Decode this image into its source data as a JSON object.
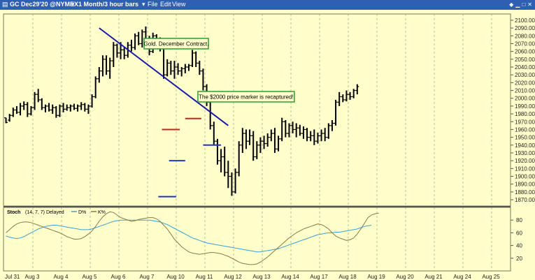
{
  "titlebar": {
    "symbol": "GC Dec29'20 @NYMEX",
    "interval": "1 Month/3 hour bars",
    "menu_file": "File",
    "menu_edit": "Edit",
    "menu_view": "View",
    "icons": [
      "pin-icon",
      "minimize-icon",
      "maximize-icon",
      "close-icon"
    ],
    "bg_color": "#2f5fb3"
  },
  "chart_data": [
    {
      "type": "ohlc",
      "title": "",
      "colors": {
        "background": "#ffffcc",
        "bars": "#000000",
        "trendline": "#1a1aa8",
        "resistance": "#cc2222",
        "support": "#2233cc",
        "grid": "#bdbd9a"
      },
      "ylim": [
        1862,
        2108
      ],
      "y_ticks": [
        1870,
        1880,
        1890,
        1900,
        1910,
        1920,
        1930,
        1940,
        1950,
        1960,
        1970,
        1980,
        1990,
        2000,
        2010,
        2020,
        2030,
        2040,
        2050,
        2060,
        2070,
        2080,
        2090,
        2100
      ],
      "x_labels": [
        "Jul 31",
        "Aug 3",
        "Aug 4",
        "Aug 5",
        "Aug 6",
        "Aug 7",
        "Aug 10",
        "Aug 11",
        "Aug 12",
        "Aug 13",
        "Aug 14",
        "Aug 17",
        "Aug 18",
        "Aug 19",
        "Aug 20",
        "Aug 21",
        "Aug 24",
        "Aug 25"
      ],
      "bars_per_day": 8,
      "bars": [
        [
          1975,
          1975,
          1968,
          1969
        ],
        [
          1972,
          1980,
          1970,
          1978
        ],
        [
          1978,
          1988,
          1976,
          1985
        ],
        [
          1985,
          1990,
          1980,
          1982
        ],
        [
          1982,
          1994,
          1978,
          1990
        ],
        [
          1990,
          1996,
          1985,
          1992
        ],
        [
          1992,
          1995,
          1976,
          1980
        ],
        [
          1980,
          1990,
          1978,
          1988
        ],
        [
          1988,
          2008,
          1985,
          2005
        ],
        [
          2005,
          2012,
          1995,
          1998
        ],
        [
          1998,
          2000,
          1985,
          1988
        ],
        [
          1988,
          1992,
          1982,
          1990
        ],
        [
          1990,
          1994,
          1983,
          1985
        ],
        [
          1985,
          1992,
          1980,
          1988
        ],
        [
          1988,
          1990,
          1975,
          1978
        ],
        [
          1978,
          1992,
          1976,
          1990
        ],
        [
          1990,
          1994,
          1982,
          1986
        ],
        [
          1986,
          1992,
          1984,
          1988
        ],
        [
          1988,
          1992,
          1983,
          1990
        ],
        [
          1990,
          1993,
          1985,
          1987
        ],
        [
          1987,
          1992,
          1983,
          1990
        ],
        [
          1990,
          1995,
          1985,
          1992
        ],
        [
          1992,
          1994,
          1983,
          1986
        ],
        [
          1986,
          1992,
          1980,
          1990
        ],
        [
          1990,
          2005,
          1988,
          2002
        ],
        [
          2002,
          2028,
          2000,
          2025
        ],
        [
          2025,
          2040,
          2020,
          2035
        ],
        [
          2035,
          2055,
          2028,
          2050
        ],
        [
          2050,
          2055,
          2030,
          2035
        ],
        [
          2035,
          2052,
          2025,
          2048
        ],
        [
          2048,
          2072,
          2040,
          2068
        ],
        [
          2068,
          2070,
          2052,
          2058
        ],
        [
          2058,
          2072,
          2050,
          2062
        ],
        [
          2062,
          2065,
          2050,
          2055
        ],
        [
          2055,
          2072,
          2052,
          2068
        ],
        [
          2068,
          2075,
          2060,
          2065
        ],
        [
          2065,
          2083,
          2062,
          2080
        ],
        [
          2080,
          2085,
          2068,
          2070
        ],
        [
          2070,
          2088,
          2065,
          2085
        ],
        [
          2085,
          2092,
          2072,
          2075
        ],
        [
          2075,
          2080,
          2055,
          2060
        ],
        [
          2060,
          2084,
          2058,
          2080
        ],
        [
          2080,
          2082,
          2065,
          2070
        ],
        [
          2070,
          2078,
          2060,
          2075
        ],
        [
          2075,
          2076,
          2025,
          2030
        ],
        [
          2030,
          2050,
          2028,
          2045
        ],
        [
          2045,
          2048,
          2030,
          2035
        ],
        [
          2035,
          2048,
          2025,
          2040
        ],
        [
          2040,
          2045,
          2030,
          2035
        ],
        [
          2035,
          2040,
          2028,
          2038
        ],
        [
          2038,
          2044,
          2032,
          2040
        ],
        [
          2040,
          2044,
          2035,
          2042
        ],
        [
          2042,
          2062,
          2040,
          2058
        ],
        [
          2058,
          2060,
          2040,
          2045
        ],
        [
          2045,
          2048,
          2030,
          2035
        ],
        [
          2035,
          2038,
          2010,
          2015
        ],
        [
          2015,
          2018,
          1990,
          1995
        ],
        [
          1995,
          1998,
          1960,
          1965
        ],
        [
          1965,
          1970,
          1940,
          1945
        ],
        [
          1945,
          1948,
          1915,
          1920
        ],
        [
          1920,
          1935,
          1905,
          1925
        ],
        [
          1925,
          1938,
          1900,
          1905
        ],
        [
          1905,
          1920,
          1885,
          1900
        ],
        [
          1900,
          1905,
          1875,
          1880
        ],
        [
          1880,
          1910,
          1878,
          1905
        ],
        [
          1905,
          1945,
          1900,
          1940
        ],
        [
          1940,
          1962,
          1930,
          1955
        ],
        [
          1955,
          1960,
          1935,
          1945
        ],
        [
          1945,
          1960,
          1940,
          1952
        ],
        [
          1952,
          1958,
          1920,
          1925
        ],
        [
          1925,
          1945,
          1922,
          1940
        ],
        [
          1940,
          1950,
          1930,
          1945
        ],
        [
          1945,
          1952,
          1935,
          1942
        ],
        [
          1942,
          1955,
          1938,
          1950
        ],
        [
          1950,
          1960,
          1945,
          1955
        ],
        [
          1955,
          1962,
          1930,
          1935
        ],
        [
          1935,
          1952,
          1932,
          1948
        ],
        [
          1948,
          1975,
          1945,
          1970
        ],
        [
          1970,
          1972,
          1950,
          1955
        ],
        [
          1955,
          1968,
          1950,
          1965
        ],
        [
          1965,
          1970,
          1955,
          1960
        ],
        [
          1960,
          1968,
          1950,
          1962
        ],
        [
          1962,
          1966,
          1952,
          1955
        ],
        [
          1955,
          1964,
          1948,
          1960
        ],
        [
          1960,
          1962,
          1945,
          1950
        ],
        [
          1950,
          1958,
          1945,
          1952
        ],
        [
          1952,
          1960,
          1940,
          1945
        ],
        [
          1945,
          1956,
          1942,
          1952
        ],
        [
          1952,
          1960,
          1945,
          1955
        ],
        [
          1955,
          1962,
          1945,
          1950
        ],
        [
          1950,
          1968,
          1948,
          1965
        ],
        [
          1965,
          1972,
          1958,
          1968
        ],
        [
          1968,
          1998,
          1965,
          1995
        ],
        [
          1995,
          2008,
          1990,
          2002
        ],
        [
          2002,
          2005,
          1995,
          1998
        ],
        [
          1998,
          2010,
          1996,
          2005
        ],
        [
          2005,
          2008,
          1998,
          2002
        ],
        [
          2002,
          2012,
          2000,
          2010
        ],
        [
          2010,
          2018,
          2005,
          2015
        ]
      ],
      "annotations": [
        {
          "text": "Gold. December Contract.",
          "date_index": 47.5,
          "price": 2070,
          "border_color": "#2e9e2e"
        },
        {
          "text": "The $2000 price marker is recaptured!",
          "date_index": 67,
          "price": 2002,
          "border_color": "#2e9e2e"
        }
      ],
      "trendline": {
        "from": [
          26,
          2090
        ],
        "to": [
          62,
          1965
        ]
      },
      "resistance_lines": [
        {
          "from": [
            43.5,
            1960
          ],
          "to": [
            48.5,
            1960
          ]
        },
        {
          "from": [
            50,
            1974
          ],
          "to": [
            54.5,
            1974
          ]
        }
      ],
      "support_lines": [
        {
          "from": [
            42.5,
            1874
          ],
          "to": [
            47.5,
            1874
          ]
        },
        {
          "from": [
            45.5,
            1920
          ],
          "to": [
            50,
            1920
          ]
        },
        {
          "from": [
            55,
            1940
          ],
          "to": [
            60,
            1940
          ]
        }
      ]
    },
    {
      "type": "line",
      "title": "Stoch",
      "params": "(14, 7, 7) Delayed",
      "legend": [
        "D%",
        "K%"
      ],
      "ylim": [
        0,
        100
      ],
      "y_ticks": [
        20,
        40,
        60,
        80
      ],
      "series": [
        {
          "name": "D%",
          "color": "#3aa0d8",
          "values": [
            55,
            53,
            52,
            51,
            52,
            54,
            57,
            60,
            63,
            66,
            68,
            70,
            71,
            72,
            72,
            71,
            70,
            69,
            68,
            67,
            66,
            65,
            65,
            65,
            66,
            68,
            70,
            72,
            74,
            76,
            78,
            79,
            80,
            80,
            80,
            80,
            80,
            80,
            80,
            80,
            80,
            79,
            78,
            77,
            75,
            73,
            70,
            67,
            64,
            61,
            58,
            55,
            52,
            50,
            48,
            46,
            44,
            43,
            42,
            41,
            40,
            39,
            38,
            37,
            36,
            35,
            34,
            33,
            32,
            31,
            30,
            30,
            31,
            32,
            33,
            34,
            35,
            37,
            39,
            41,
            43,
            45,
            47,
            49,
            51,
            53,
            55,
            57,
            58,
            59,
            60,
            60,
            61,
            61,
            62,
            63,
            64,
            65,
            66,
            68,
            70,
            71,
            72
          ]
        },
        {
          "name": "K%",
          "color": "#8a7a44",
          "values": [
            60,
            65,
            70,
            74,
            76,
            77,
            77,
            76,
            74,
            72,
            70,
            68,
            66,
            64,
            62,
            60,
            57,
            54,
            52,
            50,
            50,
            51,
            54,
            58,
            63,
            70,
            78,
            85,
            90,
            93,
            92,
            88,
            84,
            82,
            80,
            78,
            79,
            81,
            82,
            83,
            84,
            84,
            82,
            78,
            72,
            66,
            58,
            50,
            44,
            38,
            34,
            30,
            28,
            27,
            26,
            27,
            28,
            29,
            29,
            28,
            27,
            25,
            23,
            20,
            17,
            14,
            12,
            11,
            10,
            10,
            11,
            14,
            18,
            22,
            27,
            32,
            37,
            42,
            47,
            52,
            56,
            60,
            63,
            66,
            68,
            70,
            72,
            74,
            73,
            70,
            66,
            60,
            55,
            52,
            50,
            48,
            49,
            52,
            58,
            66,
            75,
            84,
            88,
            90,
            91
          ]
        }
      ]
    }
  ]
}
